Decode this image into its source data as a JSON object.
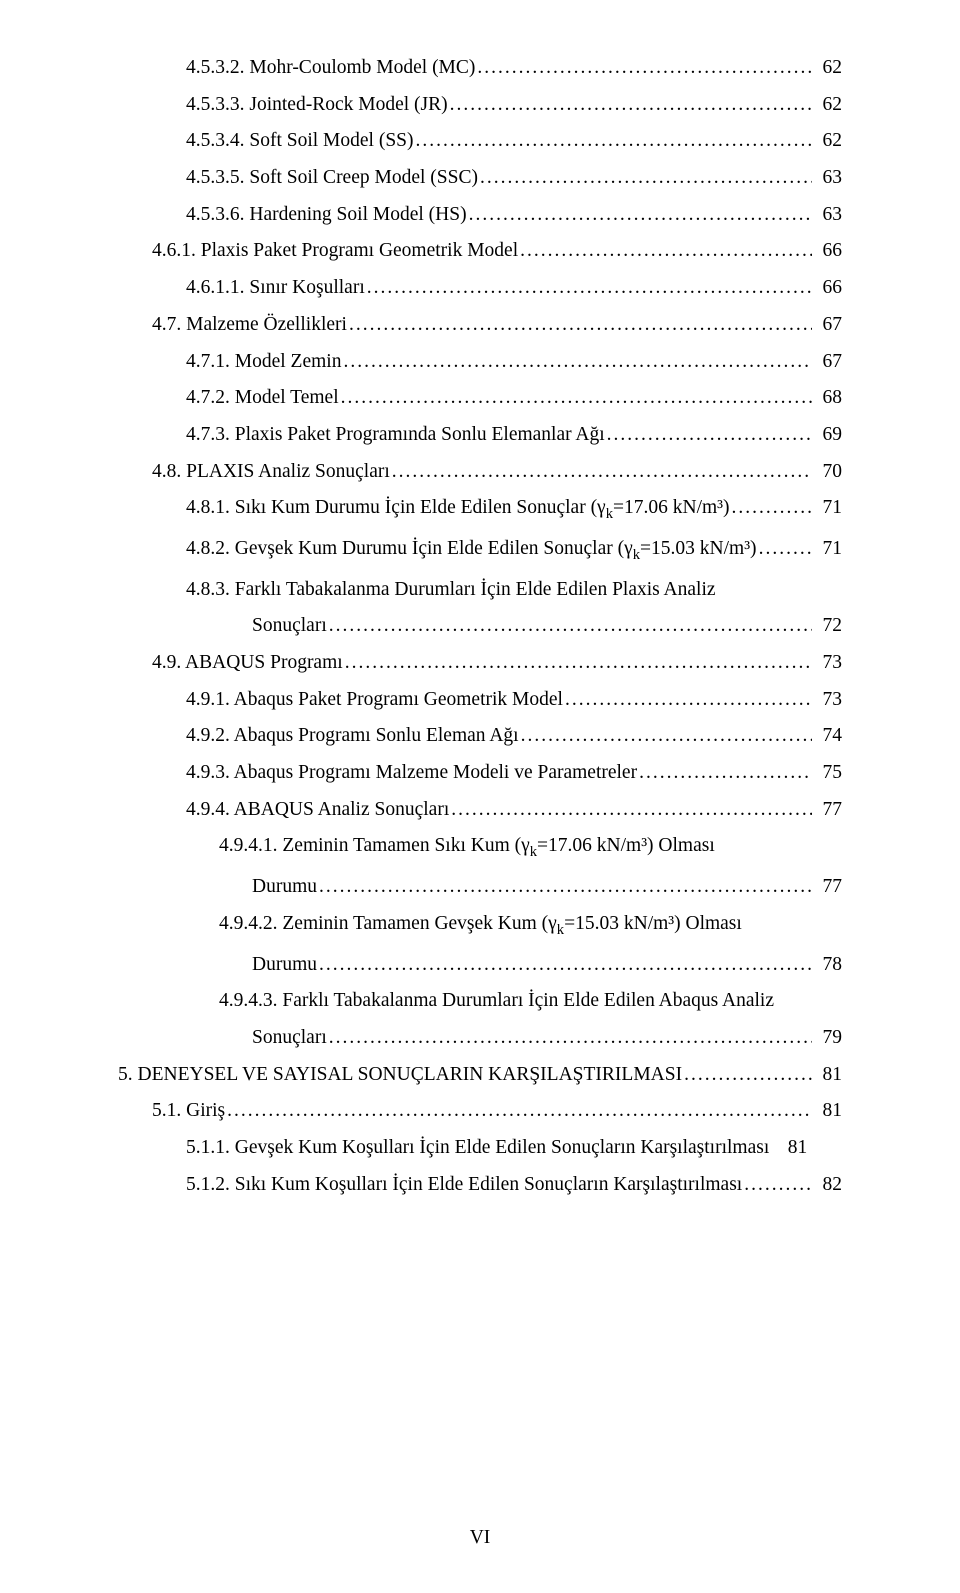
{
  "footer": "VI",
  "entries": [
    {
      "level": 2,
      "text": "4.5.3.2. Mohr-Coulomb Model (MC)",
      "page": "62"
    },
    {
      "level": 2,
      "text": "4.5.3.3. Jointed-Rock Model (JR)",
      "page": "62"
    },
    {
      "level": 2,
      "text": "4.5.3.4. Soft Soil Model (SS)",
      "page": "62"
    },
    {
      "level": 2,
      "text": "4.5.3.5. Soft Soil Creep Model (SSC)",
      "page": "63"
    },
    {
      "level": 2,
      "text": "4.5.3.6. Hardening Soil Model (HS)",
      "page": "63"
    },
    {
      "level": 1,
      "text": "4.6.1. Plaxis Paket Programı Geometrik Model",
      "page": "66"
    },
    {
      "level": 2,
      "text": "4.6.1.1. Sınır Koşulları",
      "page": "66"
    },
    {
      "level": 1,
      "text": "4.7. Malzeme Özellikleri",
      "page": "67"
    },
    {
      "level": 2,
      "text": "4.7.1. Model Zemin",
      "page": "67"
    },
    {
      "level": 2,
      "text": "4.7.2. Model Temel",
      "page": "68"
    },
    {
      "level": 2,
      "text": "4.7.3. Plaxis Paket Programında Sonlu Elemanlar Ağı",
      "page": "69"
    },
    {
      "level": 1,
      "text": "4.8. PLAXIS Analiz Sonuçları",
      "page": "70"
    },
    {
      "level": 2,
      "text": "4.8.1. Sıkı Kum Durumu İçin Elde Edilen Sonuçlar (γk=17.06 kN/m³)",
      "page": "71"
    },
    {
      "level": 2,
      "text": "4.8.2. Gevşek Kum Durumu İçin Elde Edilen Sonuçlar (γk=15.03 kN/m³)",
      "page": "71"
    },
    {
      "level": 2,
      "text": "4.8.3. Farklı Tabakalanma Durumları İçin Elde Edilen Plaxis Analiz",
      "page": null,
      "cont": {
        "text": "Sonuçları",
        "page": "72",
        "cls": "cont"
      }
    },
    {
      "level": 1,
      "text": "4.9. ABAQUS Programı",
      "page": "73"
    },
    {
      "level": 2,
      "text": "4.9.1. Abaqus Paket Programı Geometrik Model",
      "page": "73"
    },
    {
      "level": 2,
      "text": "4.9.2. Abaqus Programı Sonlu Eleman Ağı",
      "page": "74"
    },
    {
      "level": 2,
      "text": "4.9.3. Abaqus Programı Malzeme Modeli ve Parametreler",
      "page": "75"
    },
    {
      "level": 2,
      "text": "4.9.4. ABAQUS Analiz Sonuçları",
      "page": "77"
    },
    {
      "level": 3,
      "text": "4.9.4.1. Zeminin Tamamen Sıkı Kum (γk=17.06 kN/m³) Olması",
      "page": null,
      "cont": {
        "text": "Durumu",
        "page": "77",
        "cls": "cont"
      }
    },
    {
      "level": 3,
      "text": "4.9.4.2. Zeminin Tamamen Gevşek Kum (γk=15.03 kN/m³) Olması",
      "page": null,
      "cont": {
        "text": "Durumu",
        "page": "78",
        "cls": "cont"
      }
    },
    {
      "level": 3,
      "text": "4.9.4.3. Farklı Tabakalanma Durumları İçin Elde Edilen Abaqus Analiz",
      "page": null,
      "cont": {
        "text": "Sonuçları",
        "page": "79",
        "cls": "cont"
      }
    },
    {
      "level": 0,
      "text": "5. DENEYSEL VE SAYISAL SONUÇLARIN KARŞILAŞTIRILMASI",
      "page": "81"
    },
    {
      "level": 1,
      "text": "5.1. Giriş",
      "page": "81"
    },
    {
      "level": 2,
      "text": "5.1.1. Gevşek Kum Koşulları İçin Elde Edilen Sonuçların Karşılaştırılması",
      "page": "81",
      "noline": true
    },
    {
      "level": 2,
      "text": "5.1.2. Sıkı Kum Koşulları İçin Elde Edilen Sonuçların Karşılaştırılması",
      "page": "82"
    }
  ]
}
